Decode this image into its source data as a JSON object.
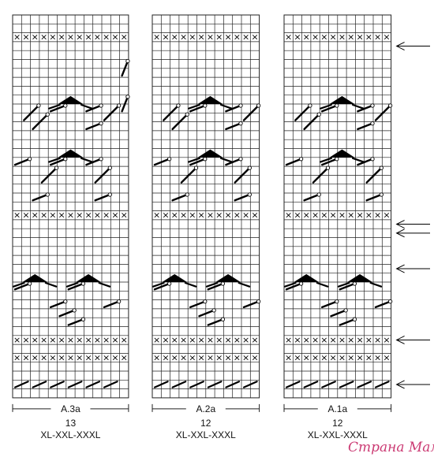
{
  "charts": [
    {
      "id": "a3",
      "label": "A.3a",
      "stitch_count": "13",
      "sizes": "XL-XXL-XXXL",
      "cols": 13
    },
    {
      "id": "a2",
      "label": "A.2a",
      "stitch_count": "12",
      "sizes": "XL-XXL-XXXL",
      "cols": 12
    },
    {
      "id": "a1",
      "label": "A.1a",
      "stitch_count": "12",
      "sizes": "XL-XXL-XXXL",
      "cols": 12
    }
  ],
  "arrows_rows": [
    3,
    23,
    24,
    28,
    36,
    41
  ],
  "watermark": "Страна Мам",
  "colors": {
    "grid": "#222222",
    "symbol": "#000000",
    "label": "#111111",
    "watermark": "#c2185b"
  }
}
